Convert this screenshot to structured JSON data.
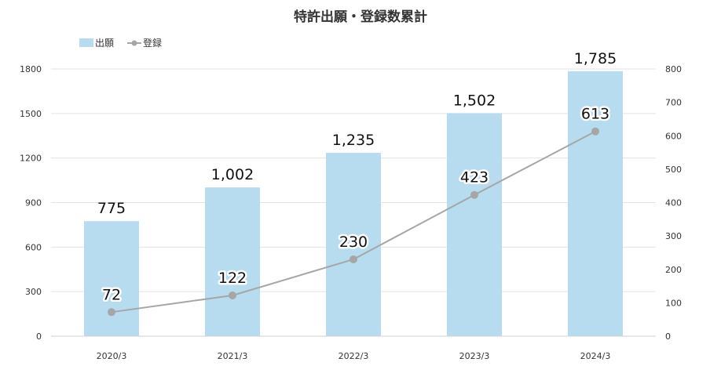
{
  "chart_data": {
    "type": "bar+line",
    "title": "特許出願・登録数累計",
    "categories": [
      "2020/3",
      "2021/3",
      "2022/3",
      "2023/3",
      "2024/3"
    ],
    "series": [
      {
        "name": "出願",
        "type": "bar",
        "axis": "left",
        "values": [
          775,
          1002,
          1235,
          1502,
          1785
        ],
        "labels": [
          "775",
          "1,002",
          "1,235",
          "1,502",
          "1,785"
        ],
        "color": "#b7dcf0"
      },
      {
        "name": "登録",
        "type": "line",
        "axis": "right",
        "values": [
          72,
          122,
          230,
          423,
          613
        ],
        "labels": [
          "72",
          "122",
          "230",
          "423",
          "613"
        ],
        "color": "#a6a6a6"
      }
    ],
    "y_left": {
      "min": 0,
      "max": 1800,
      "ticks": [
        "0",
        "300",
        "600",
        "900",
        "1200",
        "1500",
        "1800"
      ]
    },
    "y_right": {
      "min": 0,
      "max": 800,
      "ticks": [
        "0",
        "100",
        "200",
        "300",
        "400",
        "500",
        "600",
        "700",
        "800"
      ]
    },
    "legend_position": "top-left",
    "grid": true
  }
}
